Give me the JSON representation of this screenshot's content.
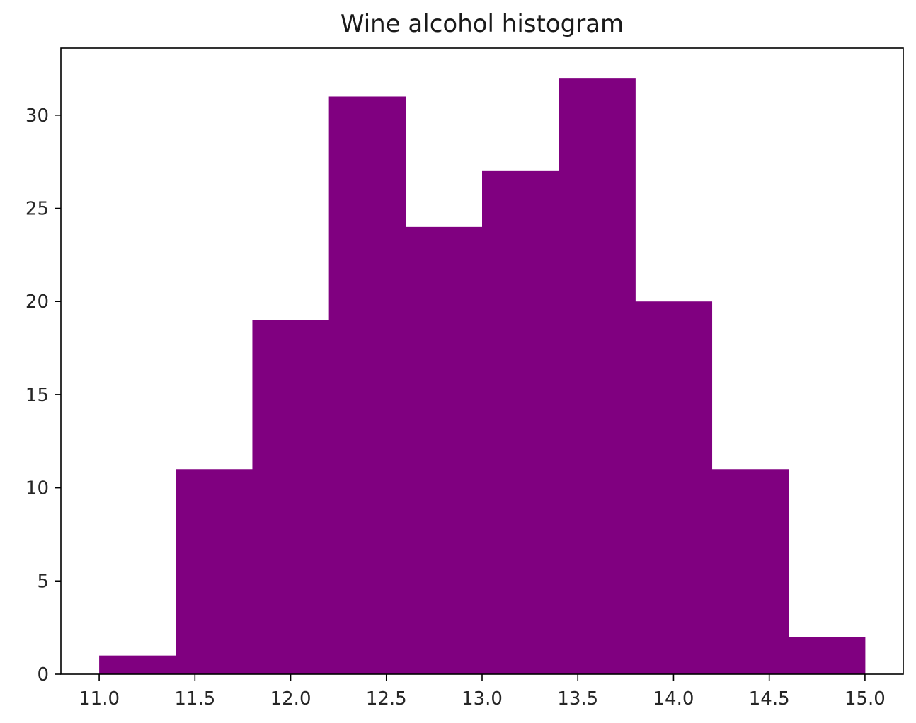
{
  "chart_data": {
    "type": "bar",
    "title": "Wine alcohol histogram",
    "xlabel": "",
    "ylabel": "",
    "bin_edges": [
      11.0,
      11.4,
      11.8,
      12.2,
      12.6,
      13.0,
      13.4,
      13.8,
      14.2,
      14.6,
      15.0
    ],
    "counts": [
      1,
      11,
      19,
      31,
      24,
      27,
      32,
      20,
      11,
      2
    ],
    "xlim": [
      10.8,
      15.2
    ],
    "ylim": [
      0,
      33.6
    ],
    "x_ticks": [
      11.0,
      11.5,
      12.0,
      12.5,
      13.0,
      13.5,
      14.0,
      14.5,
      15.0
    ],
    "x_tick_labels": [
      "11.0",
      "11.5",
      "12.0",
      "12.5",
      "13.0",
      "13.5",
      "14.0",
      "14.5",
      "15.0"
    ],
    "y_ticks": [
      0,
      5,
      10,
      15,
      20,
      25,
      30
    ],
    "y_tick_labels": [
      "0",
      "5",
      "10",
      "15",
      "20",
      "25",
      "30"
    ],
    "bar_color": "#800080",
    "grid": false,
    "legend": "none"
  }
}
